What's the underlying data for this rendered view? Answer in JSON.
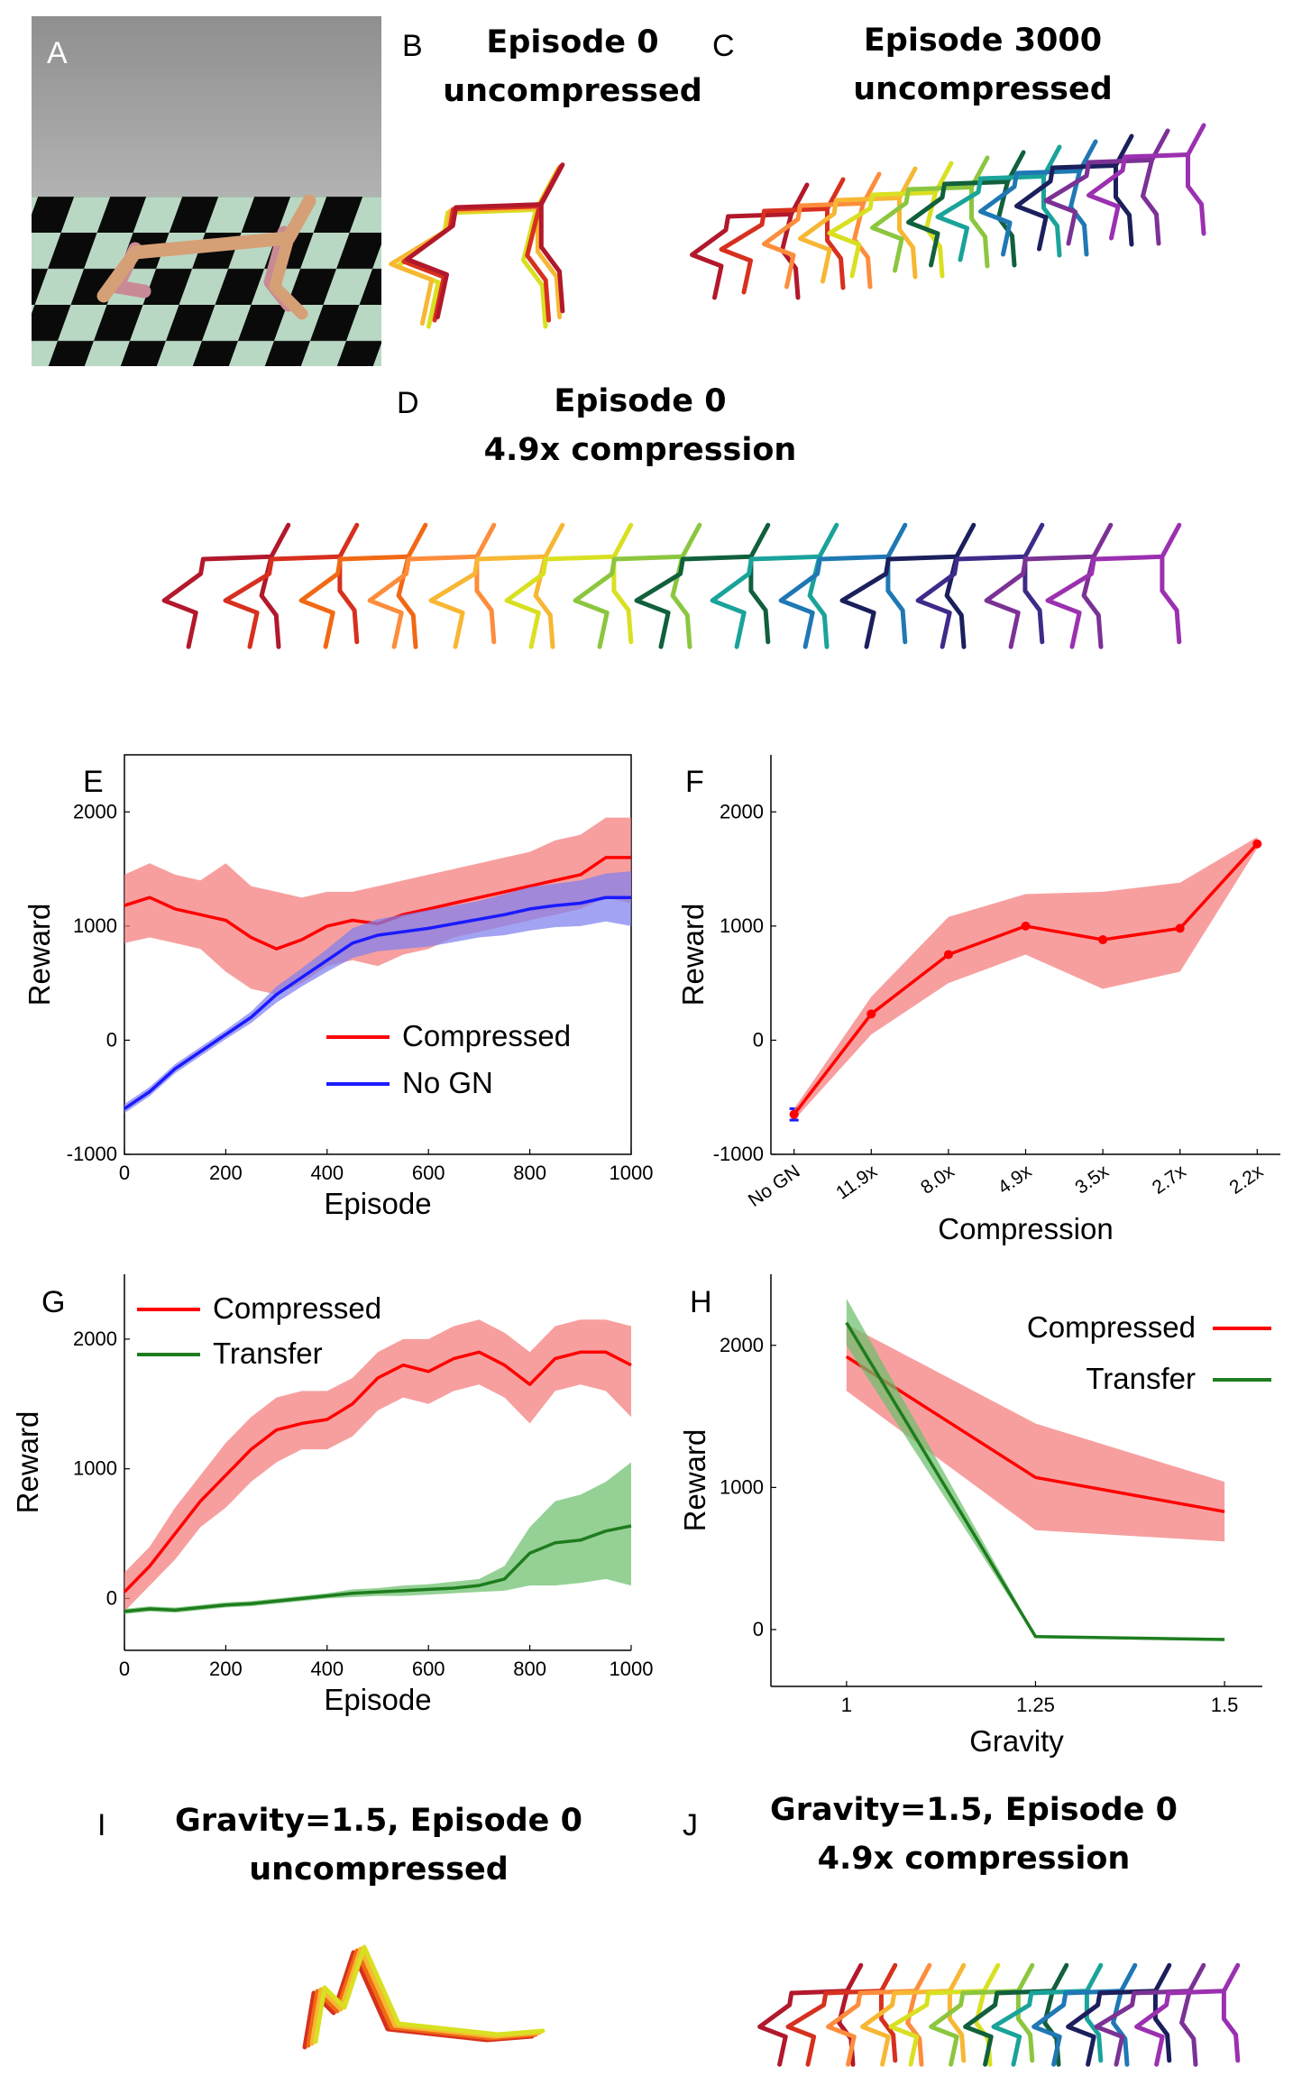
{
  "colors": {
    "red": "#ff0000",
    "red_band": "#f47a7a",
    "blue": "#1a1aff",
    "blue_band": "#7f7fef",
    "green": "#1e7d1e",
    "green_band": "#6cbf6c",
    "walker": [
      "#b2182b",
      "#d7301f",
      "#f16913",
      "#fd8d3c",
      "#f7b733",
      "#d9e021",
      "#8cc63f",
      "#2e8b57",
      "#11603c",
      "#1aa39a",
      "#1f78b4",
      "#1b1f5c",
      "#3f2a8a",
      "#7b3294",
      "#9b30b0"
    ]
  },
  "panels": {
    "A": {
      "letter": "A"
    },
    "B": {
      "letter": "B",
      "title_line1": "Episode 0",
      "title_line2": "uncompressed"
    },
    "C": {
      "letter": "C",
      "title_line1": "Episode 3000",
      "title_line2": "uncompressed"
    },
    "D": {
      "letter": "D",
      "title_line1": "Episode 0",
      "title_line2": "4.9x compression"
    },
    "I": {
      "letter": "I",
      "title_line1": "Gravity=1.5, Episode 0",
      "title_line2": "uncompressed"
    },
    "J": {
      "letter": "J",
      "title_line1": "Gravity=1.5, Episode 0",
      "title_line2": "4.9x compression"
    }
  },
  "chart_data": [
    {
      "id": "E",
      "letter": "E",
      "type": "line",
      "xlabel": "Episode",
      "ylabel": "Reward",
      "xlim": [
        0,
        1000
      ],
      "ylim": [
        -1000,
        2500
      ],
      "xticks": [
        0,
        200,
        400,
        600,
        800,
        1000
      ],
      "yticks": [
        -1000,
        0,
        1000,
        2000
      ],
      "legend": "bottom-right",
      "series": [
        {
          "name": "Compressed",
          "color": "red",
          "x": [
            0,
            50,
            100,
            150,
            200,
            250,
            300,
            350,
            400,
            450,
            500,
            550,
            600,
            650,
            700,
            750,
            800,
            850,
            900,
            950,
            1000
          ],
          "y": [
            1180,
            1250,
            1150,
            1100,
            1050,
            900,
            800,
            880,
            1000,
            1050,
            1020,
            1100,
            1150,
            1200,
            1250,
            1300,
            1350,
            1400,
            1450,
            1600,
            1600
          ],
          "lower": [
            850,
            900,
            850,
            800,
            600,
            450,
            400,
            500,
            650,
            700,
            650,
            750,
            800,
            900,
            950,
            1000,
            1050,
            1100,
            1150,
            1250,
            1200
          ],
          "upper": [
            1450,
            1550,
            1450,
            1400,
            1550,
            1350,
            1300,
            1250,
            1300,
            1300,
            1350,
            1400,
            1450,
            1500,
            1550,
            1600,
            1650,
            1750,
            1800,
            1950,
            1950
          ]
        },
        {
          "name": "No GN",
          "color": "blue",
          "x": [
            0,
            50,
            100,
            150,
            200,
            250,
            300,
            350,
            400,
            450,
            500,
            550,
            600,
            650,
            700,
            750,
            800,
            850,
            900,
            950,
            1000
          ],
          "y": [
            -600,
            -450,
            -250,
            -100,
            50,
            200,
            400,
            550,
            700,
            850,
            920,
            950,
            980,
            1020,
            1060,
            1100,
            1150,
            1180,
            1200,
            1250,
            1250
          ],
          "lower": [
            -640,
            -490,
            -290,
            -140,
            10,
            150,
            330,
            470,
            600,
            720,
            780,
            800,
            820,
            860,
            900,
            920,
            960,
            990,
            1000,
            1040,
            1000
          ],
          "upper": [
            -560,
            -410,
            -210,
            -60,
            90,
            250,
            470,
            630,
            800,
            980,
            1060,
            1100,
            1140,
            1180,
            1220,
            1280,
            1340,
            1370,
            1400,
            1460,
            1480
          ]
        }
      ]
    },
    {
      "id": "F",
      "letter": "F",
      "type": "line",
      "xlabel": "Compression",
      "ylabel": "Reward",
      "ylim": [
        -1000,
        2500
      ],
      "yticks": [
        -1000,
        0,
        1000,
        2000
      ],
      "categories": [
        "No GN",
        "11.9x",
        "8.0x",
        "4.9x",
        "3.5x",
        "2.7x",
        "2.2x"
      ],
      "series": [
        {
          "name": "No GN",
          "color": "blue",
          "values": [
            -650,
            null,
            null,
            null,
            null,
            null,
            null
          ],
          "lower": [
            -700,
            null,
            null,
            null,
            null,
            null,
            null
          ],
          "upper": [
            -600,
            null,
            null,
            null,
            null,
            null,
            null
          ]
        },
        {
          "name": "Compressed",
          "color": "red",
          "values": [
            -650,
            230,
            750,
            1000,
            880,
            980,
            1720
          ],
          "lower": [
            -700,
            50,
            500,
            750,
            450,
            600,
            1680
          ],
          "upper": [
            -600,
            380,
            1080,
            1280,
            1300,
            1380,
            1780
          ]
        }
      ]
    },
    {
      "id": "G",
      "letter": "G",
      "type": "line",
      "xlabel": "Episode",
      "ylabel": "Reward",
      "xlim": [
        0,
        1000
      ],
      "ylim": [
        -400,
        2500
      ],
      "xticks": [
        0,
        200,
        400,
        600,
        800,
        1000
      ],
      "yticks": [
        0,
        1000,
        2000
      ],
      "legend": "top-left",
      "series": [
        {
          "name": "Compressed",
          "color": "red",
          "x": [
            0,
            50,
            100,
            150,
            200,
            250,
            300,
            350,
            400,
            450,
            500,
            550,
            600,
            650,
            700,
            750,
            800,
            850,
            900,
            950,
            1000
          ],
          "y": [
            50,
            250,
            500,
            750,
            950,
            1150,
            1300,
            1350,
            1380,
            1500,
            1700,
            1800,
            1750,
            1850,
            1900,
            1800,
            1650,
            1850,
            1900,
            1900,
            1800
          ],
          "lower": [
            -100,
            100,
            300,
            550,
            700,
            900,
            1050,
            1150,
            1150,
            1250,
            1450,
            1550,
            1500,
            1600,
            1650,
            1550,
            1350,
            1600,
            1650,
            1600,
            1400
          ],
          "upper": [
            200,
            400,
            700,
            950,
            1200,
            1400,
            1550,
            1600,
            1600,
            1700,
            1900,
            2000,
            2000,
            2100,
            2150,
            2050,
            1900,
            2100,
            2150,
            2150,
            2100
          ]
        },
        {
          "name": "Transfer",
          "color": "green",
          "x": [
            0,
            50,
            100,
            150,
            200,
            250,
            300,
            350,
            400,
            450,
            500,
            550,
            600,
            650,
            700,
            750,
            800,
            850,
            900,
            950,
            1000
          ],
          "y": [
            -100,
            -80,
            -90,
            -70,
            -50,
            -40,
            -20,
            0,
            20,
            40,
            50,
            60,
            70,
            80,
            100,
            150,
            350,
            430,
            450,
            520,
            560
          ],
          "lower": [
            -120,
            -100,
            -110,
            -90,
            -70,
            -60,
            -40,
            -20,
            0,
            10,
            20,
            20,
            30,
            40,
            50,
            60,
            100,
            100,
            120,
            150,
            100
          ],
          "upper": [
            -80,
            -60,
            -70,
            -50,
            -30,
            -20,
            0,
            20,
            40,
            70,
            80,
            100,
            110,
            130,
            150,
            250,
            550,
            750,
            800,
            900,
            1050
          ]
        }
      ]
    },
    {
      "id": "H",
      "letter": "H",
      "type": "line",
      "xlabel": "Gravity",
      "ylabel": "Reward",
      "xlim": [
        0.9,
        1.55
      ],
      "ylim": [
        -400,
        2500
      ],
      "xticks": [
        1,
        1.25,
        1.5
      ],
      "yticks": [
        0,
        1000,
        2000
      ],
      "legend": "top-right",
      "series": [
        {
          "name": "Compressed",
          "color": "red",
          "x": [
            1,
            1.25,
            1.5
          ],
          "y": [
            1920,
            1070,
            830
          ],
          "lower": [
            1680,
            700,
            620
          ],
          "upper": [
            2150,
            1450,
            1040
          ]
        },
        {
          "name": "Transfer",
          "color": "green",
          "x": [
            1,
            1.25,
            1.5
          ],
          "y": [
            2160,
            -50,
            -70
          ],
          "lower": [
            2000,
            -60,
            -80
          ],
          "upper": [
            2330,
            -40,
            -60
          ]
        }
      ]
    }
  ]
}
